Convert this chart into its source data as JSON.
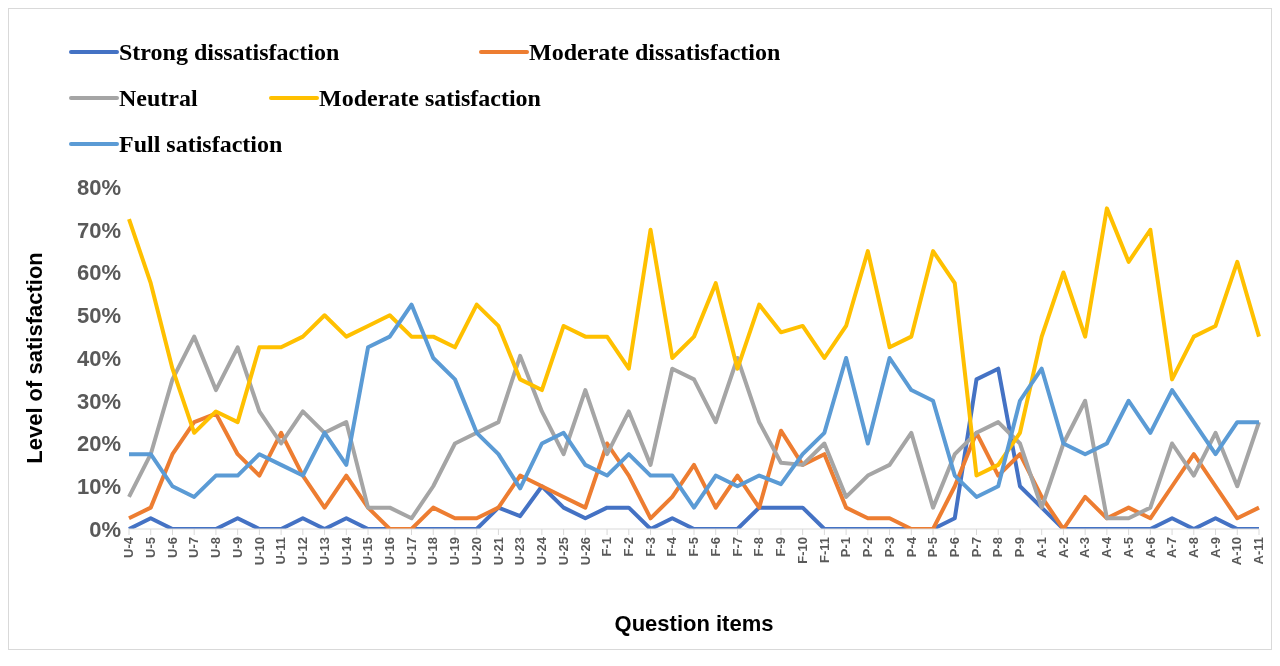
{
  "chart_data": {
    "type": "line",
    "xlabel": "Question items",
    "ylabel": "Level of satisfaction",
    "categories": [
      "U-4",
      "U-5",
      "U-6",
      "U-7",
      "U-8",
      "U-9",
      "U-10",
      "U-11",
      "U-12",
      "U-13",
      "U-14",
      "U-15",
      "U-16",
      "U-17",
      "U-18",
      "U-19",
      "U-20",
      "U-21",
      "U-23",
      "U-24",
      "U-25",
      "U-26",
      "F-1",
      "F-2",
      "F-3",
      "F-4",
      "F-5",
      "F-6",
      "F-7",
      "F-8",
      "F-9",
      "F-10",
      "F-11",
      "P-1",
      "P-2",
      "P-3",
      "P-4",
      "P-5",
      "P-6",
      "P-7",
      "P-8",
      "P-9",
      "A-1",
      "A-2",
      "A-3",
      "A-4",
      "A-5",
      "A-6",
      "A-7",
      "A-8",
      "A-9",
      "A-10",
      "A-11"
    ],
    "series": [
      {
        "name": "Strong dissatisfaction",
        "color": "#4472c4",
        "values": [
          0,
          2.5,
          0,
          0,
          0,
          2.5,
          0,
          0,
          2.5,
          0,
          2.5,
          0,
          0,
          0,
          0,
          0,
          0,
          5,
          3,
          10,
          5,
          2.5,
          5,
          5,
          0,
          2.5,
          0,
          0,
          0,
          5,
          5,
          5,
          0,
          0,
          0,
          0,
          0,
          0,
          2.5,
          35,
          37.5,
          10,
          5,
          0,
          0,
          0,
          0,
          0,
          2.5,
          0,
          2.5,
          0,
          0
        ]
      },
      {
        "name": "Moderate dissatisfaction",
        "color": "#ed7d31",
        "values": [
          2.5,
          5,
          17.5,
          25,
          27,
          17.5,
          12.5,
          22.5,
          12.5,
          5,
          12.5,
          5,
          0,
          0,
          5,
          2.5,
          2.5,
          5,
          12.5,
          10,
          7.5,
          5,
          20,
          12.5,
          2.5,
          7.5,
          15,
          5,
          12.5,
          5,
          23,
          15,
          17.5,
          5,
          2.5,
          2.5,
          0,
          0,
          10,
          22.5,
          12.5,
          17.5,
          7.5,
          0,
          7.5,
          2.5,
          5,
          2.5,
          10,
          17.5,
          10,
          2.5,
          5
        ]
      },
      {
        "name": "Neutral",
        "color": "#a5a5a5",
        "values": [
          7.5,
          17.5,
          35,
          45,
          32.5,
          42.5,
          27.5,
          20,
          27.5,
          22.5,
          25,
          5,
          5,
          2.5,
          10,
          20,
          22.5,
          25,
          40.5,
          27.5,
          17.5,
          32.5,
          17.5,
          27.5,
          15,
          37.5,
          35,
          25,
          40,
          25,
          15.5,
          15,
          20,
          7.5,
          12.5,
          15,
          22.5,
          5,
          17.5,
          22.5,
          25,
          20,
          5,
          20,
          30,
          2.5,
          2.5,
          5,
          20,
          12.5,
          22.5,
          10,
          25
        ]
      },
      {
        "name": "Moderate satisfaction",
        "color": "#ffc000",
        "values": [
          72.5,
          57.5,
          37.5,
          22.5,
          27.5,
          25,
          42.5,
          42.5,
          45,
          50,
          45,
          47.5,
          50,
          45,
          45,
          42.5,
          52.5,
          47.5,
          35,
          32.5,
          47.5,
          45,
          45,
          37.5,
          70,
          40,
          45,
          57.5,
          37.5,
          52.5,
          46,
          47.5,
          40,
          47.5,
          65,
          42.5,
          45,
          65,
          57.5,
          12.5,
          15,
          22.5,
          45,
          60,
          45,
          75,
          62.5,
          70,
          35,
          45,
          47.5,
          62.5,
          45
        ]
      },
      {
        "name": "Full satisfaction",
        "color": "#5b9bd5",
        "values": [
          17.5,
          17.5,
          10,
          7.5,
          12.5,
          12.5,
          17.5,
          15,
          12.5,
          22.5,
          15,
          42.5,
          45,
          52.5,
          40,
          35,
          22.5,
          17.5,
          9.5,
          20,
          22.5,
          15,
          12.5,
          17.5,
          12.5,
          12.5,
          5,
          12.5,
          10,
          12.5,
          10.5,
          17.5,
          22.5,
          40,
          20,
          40,
          32.5,
          30,
          12.5,
          7.5,
          10,
          30,
          37.5,
          20,
          17.5,
          20,
          30,
          22.5,
          32.5,
          25,
          17.5,
          25,
          25
        ]
      }
    ],
    "ylim": [
      0,
      80
    ],
    "yticks": [
      {
        "value": 0,
        "label": "0%"
      },
      {
        "value": 10,
        "label": "10%"
      },
      {
        "value": 20,
        "label": "20%"
      },
      {
        "value": 30,
        "label": "30%"
      },
      {
        "value": 40,
        "label": "40%"
      },
      {
        "value": 50,
        "label": "50%"
      },
      {
        "value": 60,
        "label": "60%"
      },
      {
        "value": 70,
        "label": "70%"
      },
      {
        "value": 80,
        "label": "80%"
      }
    ],
    "legend": "top",
    "marker": "none",
    "line_style": "solid"
  }
}
